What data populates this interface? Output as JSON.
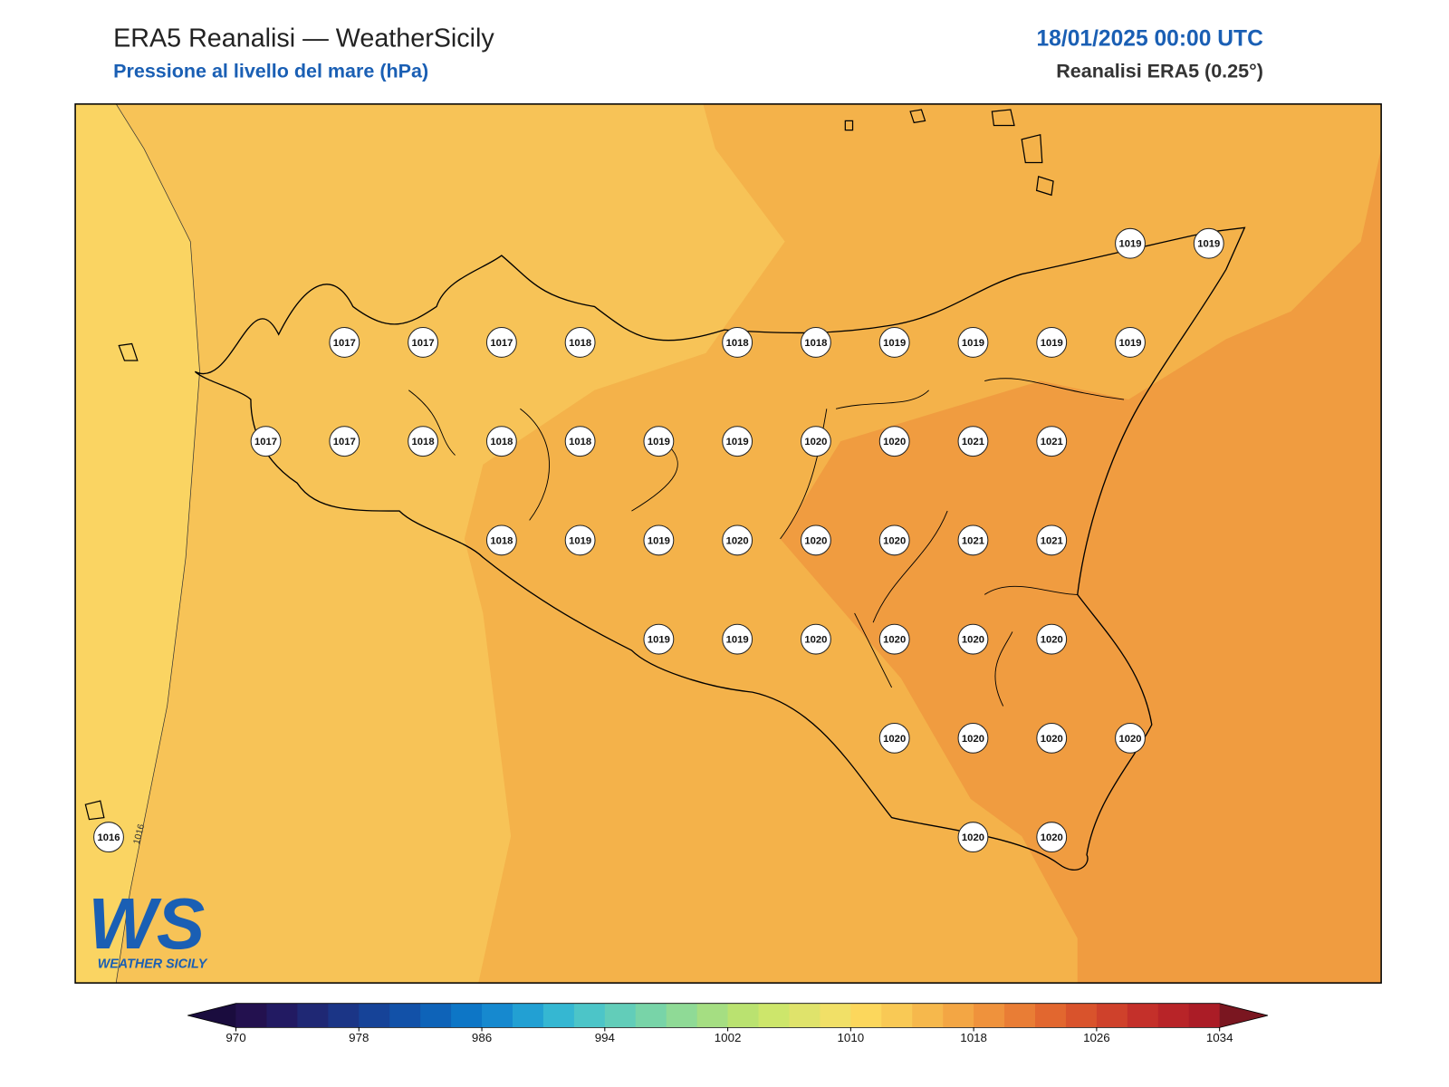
{
  "header": {
    "title": "ERA5 Reanalisi — WeatherSicily",
    "subtitle": "Pressione al livello del mare (hPa)",
    "date": "18/01/2025 00:00 UTC",
    "source": "Reanalisi ERA5 (0.25°)"
  },
  "contour_label": "1016",
  "logo": {
    "mark": "WS",
    "name": "WEATHER SICILY"
  },
  "stations": [
    [
      null,
      null,
      null,
      null,
      null,
      null,
      null,
      null,
      null,
      null,
      null,
      null,
      null,
      1019,
      1019
    ],
    [
      null,
      null,
      null,
      1017,
      1017,
      1017,
      1018,
      null,
      1018,
      1018,
      1019,
      1019,
      1019,
      1019,
      null
    ],
    [
      null,
      null,
      1017,
      1017,
      1018,
      1018,
      1018,
      1019,
      1019,
      1020,
      1020,
      1021,
      1021,
      null,
      null
    ],
    [
      null,
      null,
      null,
      null,
      null,
      1018,
      1019,
      1019,
      1020,
      1020,
      1020,
      1021,
      1021,
      null,
      null
    ],
    [
      null,
      null,
      null,
      null,
      null,
      null,
      null,
      1019,
      1019,
      1020,
      1020,
      1020,
      1020,
      null,
      null
    ],
    [
      null,
      null,
      null,
      null,
      null,
      null,
      null,
      null,
      null,
      null,
      1020,
      1020,
      1020,
      1020,
      null
    ],
    [
      1016,
      null,
      null,
      null,
      null,
      null,
      null,
      null,
      null,
      null,
      null,
      1020,
      1020,
      null,
      null
    ]
  ],
  "colorbar": {
    "lim": [
      970,
      1034
    ],
    "ticks": [
      970,
      978,
      986,
      994,
      1002,
      1010,
      1018,
      1026,
      1034
    ],
    "colors": [
      "#23114f",
      "#221a62",
      "#1f2874",
      "#1b3586",
      "#164398",
      "#1251a8",
      "#0e63b8",
      "#0d76c6",
      "#1689cf",
      "#22a0d3",
      "#35b7d2",
      "#4cc5c8",
      "#62cdb9",
      "#78d4a8",
      "#8fda96",
      "#a5de82",
      "#bae270",
      "#cde66b",
      "#dfe36b",
      "#f1e067",
      "#fcd75c",
      "#f9c955",
      "#f6b84c",
      "#f3a644",
      "#ef923c",
      "#e97d35",
      "#e2672f",
      "#d9532c",
      "#cf412b",
      "#c4302a",
      "#b82428",
      "#ab1c26"
    ],
    "under": "#1a0c3e",
    "over": "#7a1620"
  }
}
